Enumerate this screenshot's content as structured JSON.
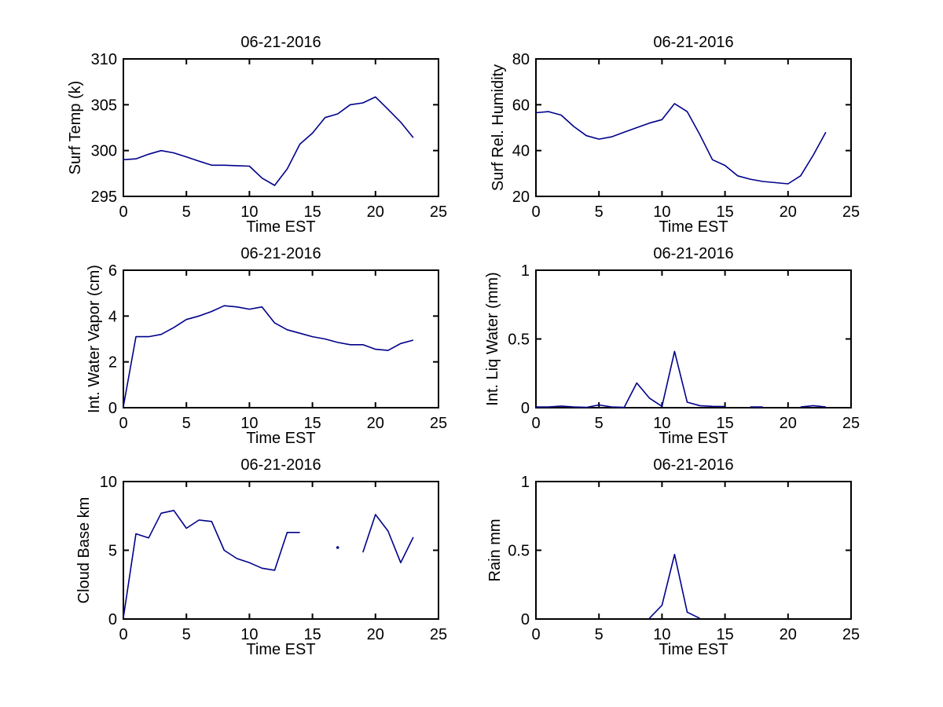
{
  "figure": {
    "background": "#ffffff",
    "axis_color": "#000000",
    "text_color": "#000000",
    "line_color": "#00008B"
  },
  "chart_data": [
    {
      "id": "surf-temp",
      "type": "line",
      "title": "06-21-2016",
      "xlabel": "Time EST",
      "ylabel": "Surf Temp (k)",
      "xlim": [
        0,
        25
      ],
      "ylim": [
        295,
        310
      ],
      "xticks": [
        0,
        5,
        10,
        15,
        20,
        25
      ],
      "yticks": [
        295,
        300,
        305,
        310
      ],
      "grid": false,
      "x": [
        0,
        1,
        2,
        3,
        4,
        5,
        6,
        7,
        8,
        9,
        10,
        11,
        12,
        13,
        14,
        15,
        16,
        17,
        18,
        19,
        20,
        21,
        22,
        23
      ],
      "y": [
        299.0,
        299.1,
        299.6,
        300.0,
        299.75,
        299.3,
        298.85,
        298.4,
        298.4,
        298.35,
        298.3,
        297.0,
        296.2,
        298.0,
        300.7,
        301.9,
        303.6,
        304.0,
        305.0,
        305.2,
        305.85,
        304.5,
        303.1,
        301.4
      ]
    },
    {
      "id": "rel-humidity",
      "type": "line",
      "title": "06-21-2016",
      "xlabel": "Time EST",
      "ylabel": "Surf Rel. Humidity",
      "xlim": [
        0,
        25
      ],
      "ylim": [
        20,
        80
      ],
      "xticks": [
        0,
        5,
        10,
        15,
        20,
        25
      ],
      "yticks": [
        20,
        40,
        60,
        80
      ],
      "grid": false,
      "x": [
        0,
        1,
        2,
        3,
        4,
        5,
        6,
        7,
        8,
        9,
        10,
        11,
        12,
        13,
        14,
        15,
        16,
        17,
        18,
        19,
        20,
        21,
        22,
        23
      ],
      "y": [
        56.5,
        57.0,
        55.5,
        50.5,
        46.5,
        45.0,
        46.0,
        48.0,
        50.0,
        52.0,
        53.5,
        60.5,
        57.0,
        47.0,
        36.0,
        33.5,
        29.0,
        27.5,
        26.5,
        26.0,
        25.5,
        29.0,
        38.0,
        48.0
      ]
    },
    {
      "id": "water-vapor",
      "type": "line",
      "title": "06-21-2016",
      "xlabel": "Time EST",
      "ylabel": "Int. Water Vapor (cm)",
      "xlim": [
        0,
        25
      ],
      "ylim": [
        0,
        6
      ],
      "xticks": [
        0,
        5,
        10,
        15,
        20,
        25
      ],
      "yticks": [
        0,
        2,
        4,
        6
      ],
      "grid": false,
      "x": [
        0,
        1,
        2,
        3,
        4,
        5,
        6,
        7,
        8,
        9,
        10,
        11,
        12,
        13,
        14,
        15,
        16,
        17,
        18,
        19,
        20,
        21,
        22,
        23
      ],
      "y": [
        0.05,
        3.1,
        3.1,
        3.2,
        3.5,
        3.85,
        4.0,
        4.2,
        4.45,
        4.4,
        4.3,
        4.4,
        3.7,
        3.4,
        3.25,
        3.1,
        3.0,
        2.85,
        2.75,
        2.75,
        2.55,
        2.5,
        2.8,
        2.95
      ]
    },
    {
      "id": "liq-water",
      "type": "line",
      "title": "06-21-2016",
      "xlabel": "Time EST",
      "ylabel": "Int. Liq Water (mm)",
      "xlim": [
        0,
        25
      ],
      "ylim": [
        0,
        1
      ],
      "xticks": [
        0,
        5,
        10,
        15,
        20,
        25
      ],
      "yticks": [
        0,
        0.5,
        1
      ],
      "grid": false,
      "x": [
        0,
        1,
        2,
        3,
        4,
        5,
        6,
        7,
        8,
        9,
        10,
        11,
        12,
        13,
        14,
        15,
        16,
        17,
        18,
        19,
        20,
        21,
        22,
        23
      ],
      "y": [
        0.005,
        0.005,
        0.012,
        0.005,
        0.002,
        0.02,
        0.005,
        0.002,
        0.18,
        0.07,
        0.01,
        0.41,
        0.04,
        0.015,
        0.01,
        0.008,
        null,
        0.006,
        0.006,
        null,
        null,
        0.005,
        0.015,
        0.005
      ]
    },
    {
      "id": "cloud-base",
      "type": "line",
      "title": "06-21-2016",
      "xlabel": "Time EST",
      "ylabel": "Cloud Base km",
      "xlim": [
        0,
        25
      ],
      "ylim": [
        0,
        10
      ],
      "xticks": [
        0,
        5,
        10,
        15,
        20,
        25
      ],
      "yticks": [
        0,
        5,
        10
      ],
      "grid": false,
      "x": [
        0,
        1,
        2,
        3,
        4,
        5,
        6,
        7,
        8,
        9,
        10,
        11,
        12,
        13,
        14,
        15,
        16,
        17,
        18,
        19,
        20,
        21,
        22,
        23
      ],
      "y": [
        0.1,
        6.2,
        5.9,
        7.7,
        7.9,
        6.6,
        7.2,
        7.1,
        5.0,
        4.4,
        4.1,
        3.7,
        3.55,
        6.3,
        6.3,
        null,
        null,
        5.2,
        null,
        4.85,
        7.6,
        6.4,
        4.1,
        5.95
      ]
    },
    {
      "id": "rain",
      "type": "line",
      "title": "06-21-2016",
      "xlabel": "Time EST",
      "ylabel": "Rain mm",
      "xlim": [
        0,
        25
      ],
      "ylim": [
        0,
        1
      ],
      "xticks": [
        0,
        5,
        10,
        15,
        20,
        25
      ],
      "yticks": [
        0,
        0.5,
        1
      ],
      "grid": false,
      "x": [
        0,
        1,
        2,
        3,
        4,
        5,
        6,
        7,
        8,
        9,
        10,
        11,
        12,
        13,
        14,
        15,
        16,
        17,
        18,
        19,
        20,
        21,
        22,
        23
      ],
      "y": [
        null,
        null,
        null,
        null,
        null,
        null,
        null,
        null,
        null,
        0.005,
        0.1,
        0.47,
        0.05,
        0.005,
        null,
        null,
        null,
        null,
        null,
        null,
        null,
        null,
        null,
        null
      ]
    }
  ]
}
